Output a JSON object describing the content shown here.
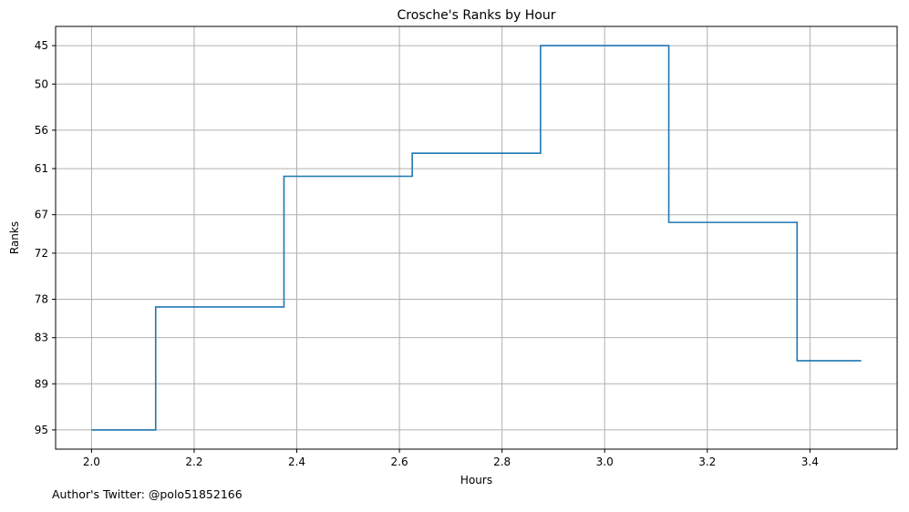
{
  "chart_data": {
    "type": "line",
    "step": "mid",
    "title": "Crosche's Ranks by Hour",
    "xlabel": "Hours",
    "ylabel": "Ranks",
    "x": [
      2.0,
      2.25,
      2.5,
      2.75,
      3.0,
      3.25,
      3.5
    ],
    "series": [
      {
        "values": [
          95,
          79,
          62,
          59,
          45,
          68,
          86
        ]
      }
    ],
    "xlim": [
      1.93,
      3.57
    ],
    "ylim": [
      97.5,
      42.5
    ],
    "y_inverted": true,
    "xticks": [
      2.0,
      2.2,
      2.4,
      2.6,
      2.8,
      3.0,
      3.2,
      3.4
    ],
    "xtick_labels": [
      "2.0",
      "2.2",
      "2.4",
      "2.6",
      "2.8",
      "3.0",
      "3.2",
      "3.4"
    ],
    "yticks": [
      45,
      50,
      56,
      61,
      67,
      72,
      78,
      83,
      89,
      95
    ],
    "ytick_labels": [
      "45",
      "50",
      "56",
      "61",
      "67",
      "72",
      "78",
      "83",
      "89",
      "95"
    ],
    "grid": true,
    "line_color": "#1f77b4",
    "grid_color": "#b0b0b0"
  },
  "footer": {
    "credit": "Author's Twitter: @polo51852166"
  }
}
